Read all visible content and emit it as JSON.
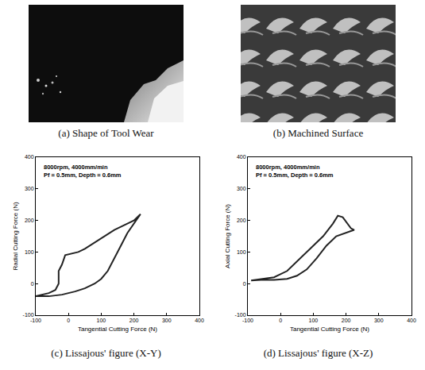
{
  "panels": [
    {
      "caption": "(a) Shape of Tool Wear"
    },
    {
      "caption": "(b) Machined Surface"
    }
  ],
  "chart_data": [
    {
      "type": "line",
      "caption": "(c) Lissajous' figure (X-Y)",
      "annotations": [
        "8000rpm, 4000mm/min",
        "Pf = 0.5mm, Depth = 0.6mm"
      ],
      "x_label": "Tangential Cutting Force (N)",
      "y_label": "Radial Cutting Force (N)",
      "xlim": [
        -100,
        400
      ],
      "ylim": [
        -100,
        400
      ],
      "xticks": [
        -100,
        0,
        100,
        200,
        300,
        400
      ],
      "yticks": [
        -100,
        0,
        100,
        200,
        300,
        400
      ],
      "series": [
        {
          "color": "#222222",
          "x": [
            -100,
            -60,
            -40,
            -30,
            -30,
            -20,
            -10,
            10,
            30,
            50,
            80,
            110,
            140,
            170,
            200,
            220,
            200,
            180,
            160,
            140,
            120,
            100,
            80,
            50,
            20,
            -20,
            -60,
            -100
          ],
          "values": [
            -40,
            -30,
            -20,
            0,
            40,
            60,
            90,
            95,
            100,
            110,
            130,
            150,
            170,
            185,
            200,
            220,
            190,
            160,
            120,
            80,
            40,
            15,
            0,
            -15,
            -25,
            -35,
            -40,
            -40
          ]
        }
      ]
    },
    {
      "type": "line",
      "caption": "(d) Lissajous' figure (X-Z)",
      "annotations": [
        "8000rpm, 4000mm/min",
        "Pf = 0.5mm, Depth = 0.6mm"
      ],
      "x_label": "Tangential Cutting Force (N)",
      "y_label": "Axial Cutting Force (N)",
      "xlim": [
        -100,
        400
      ],
      "ylim": [
        -100,
        400
      ],
      "xticks": [
        -100,
        0,
        100,
        200,
        300,
        400
      ],
      "yticks": [
        -100,
        0,
        100,
        200,
        300,
        400
      ],
      "series": [
        {
          "color": "#222222",
          "x": [
            -90,
            -60,
            -20,
            20,
            60,
            100,
            130,
            160,
            175,
            190,
            200,
            215,
            225,
            200,
            170,
            140,
            110,
            80,
            50,
            20,
            -20,
            -60,
            -90
          ],
          "values": [
            10,
            15,
            20,
            40,
            80,
            120,
            150,
            190,
            215,
            210,
            195,
            175,
            170,
            160,
            150,
            120,
            80,
            45,
            25,
            15,
            12,
            12,
            10
          ]
        }
      ]
    }
  ]
}
